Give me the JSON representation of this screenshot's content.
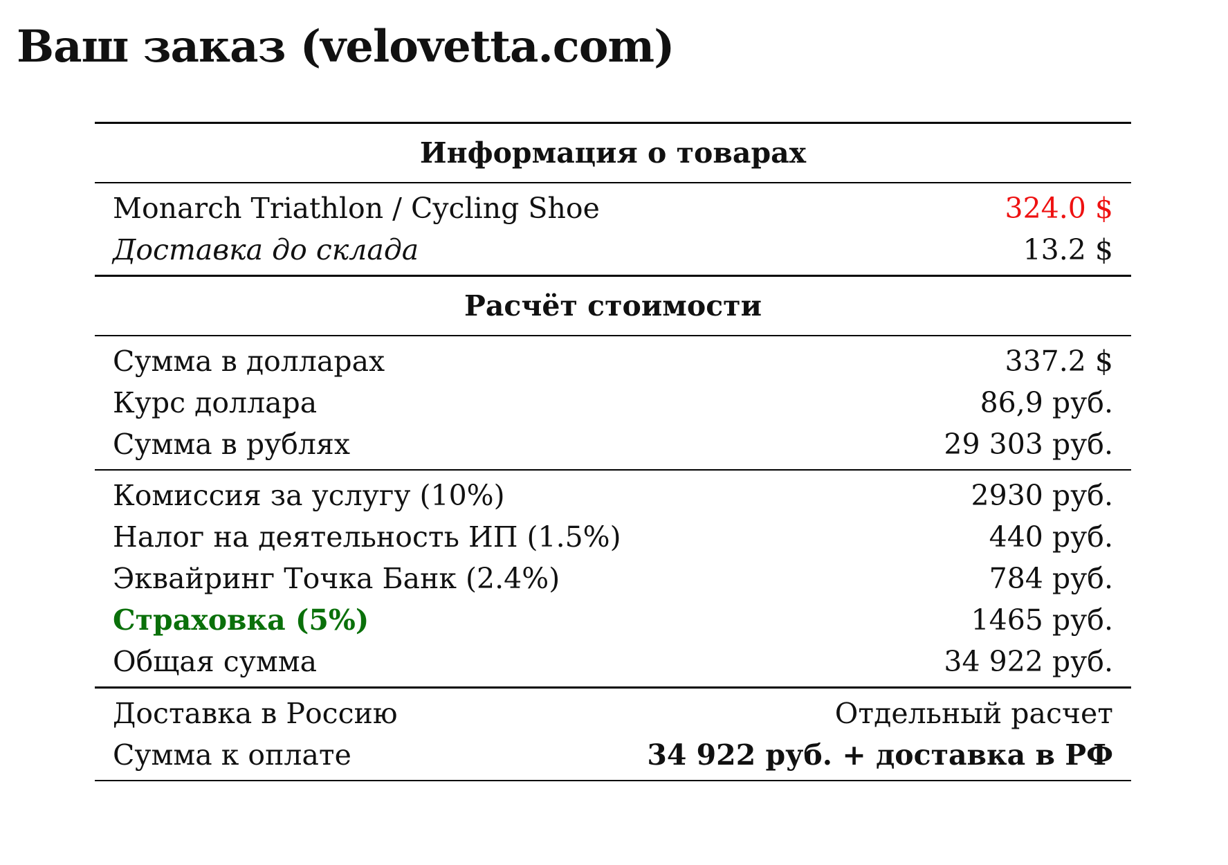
{
  "title": "Ваш заказ (velovetta.com)",
  "colors": {
    "price": "#ee1111",
    "insurance": "#0a700a"
  },
  "goods": {
    "header": "Информация о товарах",
    "rows": [
      {
        "label": "Monarch Triathlon / Cycling Shoe",
        "value": "324.0 $"
      },
      {
        "label": "Доставка до склада",
        "value": "13.2 $"
      }
    ]
  },
  "calc": {
    "header": "Расчёт стоимости",
    "conversion": [
      {
        "label": "Сумма в долларах",
        "value": "337.2 $"
      },
      {
        "label": "Курс доллара",
        "value": "86,9 руб."
      },
      {
        "label": "Сумма в рублях",
        "value": "29 303 руб."
      }
    ],
    "fees": [
      {
        "label": "Комиссия за услугу (10%)",
        "value": "2930 руб."
      },
      {
        "label": "Налог на деятельность ИП (1.5%)",
        "value": "440 руб."
      },
      {
        "label": "Эквайринг Точка Банк (2.4%)",
        "value": "784 руб."
      },
      {
        "label": "Страховка (5%)",
        "value": "1465 руб."
      },
      {
        "label": "Общая сумма",
        "value": "34 922 руб."
      }
    ],
    "final": [
      {
        "label": "Доставка в Россию",
        "value": "Отдельный расчет"
      },
      {
        "label": "Сумма к оплате",
        "value": "34 922 руб. + доставка в РФ"
      }
    ]
  }
}
